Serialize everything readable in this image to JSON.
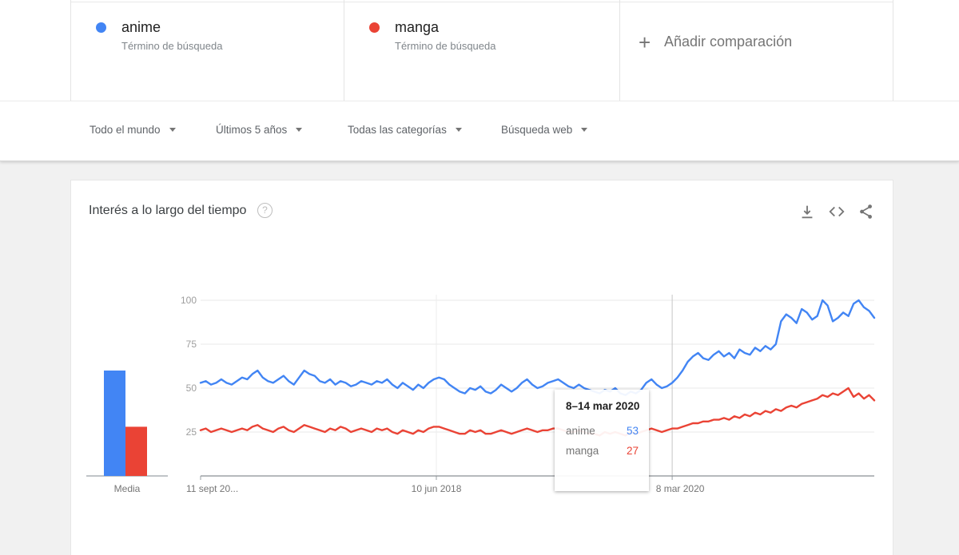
{
  "terms": {
    "cards": [
      {
        "term": "anime",
        "subtitle": "Término de búsqueda",
        "color": "#4285f4"
      },
      {
        "term": "manga",
        "subtitle": "Término de búsqueda",
        "color": "#ea4335"
      }
    ],
    "add_plus": "+",
    "add_label": "Añadir comparación"
  },
  "filters": {
    "items": [
      {
        "label": "Todo el mundo"
      },
      {
        "label": "Últimos 5 años"
      },
      {
        "label": "Todas las categorías"
      },
      {
        "label": "Búsqueda web"
      }
    ]
  },
  "panel": {
    "title": "Interés a lo largo del tiempo",
    "help": "?"
  },
  "icons": [
    "download-icon",
    "embed-icon",
    "share-icon"
  ],
  "tooltip": {
    "date": "8–14 mar 2020",
    "rows": [
      {
        "label": "anime",
        "value": "53"
      },
      {
        "label": "manga",
        "value": "27"
      }
    ]
  },
  "chart_data": {
    "type": "line",
    "title": "Interés a lo largo del tiempo",
    "ylabel": "",
    "xlabel": "",
    "ylim": [
      0,
      100
    ],
    "grid": true,
    "y_ticks": [
      25,
      50,
      75,
      100
    ],
    "x_ticks": [
      {
        "label": "11 sept 20...",
        "f": 0
      },
      {
        "label": "10 jun 2018",
        "f": 0.35
      },
      {
        "label": "8 mar 2020",
        "f": 0.7,
        "crosshair": true
      }
    ],
    "hover_point": {
      "date": "8–14 mar 2020",
      "anime": 53,
      "manga": 27
    },
    "series": [
      {
        "name": "anime",
        "color": "#4285f4",
        "values": [
          53,
          54,
          52,
          53,
          55,
          53,
          52,
          54,
          56,
          55,
          58,
          60,
          56,
          54,
          53,
          55,
          57,
          54,
          52,
          56,
          60,
          58,
          57,
          54,
          53,
          55,
          52,
          54,
          53,
          51,
          52,
          54,
          53,
          52,
          54,
          53,
          55,
          52,
          50,
          53,
          51,
          49,
          52,
          50,
          53,
          55,
          56,
          55,
          52,
          50,
          48,
          47,
          50,
          49,
          51,
          48,
          47,
          49,
          52,
          50,
          48,
          50,
          53,
          55,
          52,
          50,
          51,
          53,
          54,
          55,
          53,
          51,
          50,
          52,
          50,
          49,
          48,
          47,
          49,
          48,
          50,
          47,
          46,
          48,
          47,
          49,
          53,
          55,
          52,
          50,
          51,
          53,
          56,
          60,
          65,
          68,
          70,
          67,
          66,
          69,
          71,
          68,
          70,
          67,
          72,
          70,
          69,
          73,
          71,
          74,
          72,
          75,
          88,
          92,
          90,
          87,
          95,
          93,
          89,
          91,
          100,
          97,
          88,
          90,
          93,
          91,
          98,
          100,
          96,
          94,
          90
        ]
      },
      {
        "name": "manga",
        "color": "#ea4335",
        "values": [
          26,
          27,
          25,
          26,
          27,
          26,
          25,
          26,
          27,
          26,
          28,
          29,
          27,
          26,
          25,
          27,
          28,
          26,
          25,
          27,
          29,
          28,
          27,
          26,
          25,
          27,
          26,
          28,
          27,
          25,
          26,
          27,
          26,
          25,
          27,
          26,
          27,
          25,
          24,
          26,
          25,
          24,
          26,
          25,
          27,
          28,
          28,
          27,
          26,
          25,
          24,
          24,
          26,
          25,
          26,
          24,
          24,
          25,
          26,
          25,
          24,
          25,
          26,
          27,
          26,
          25,
          26,
          26,
          27,
          27,
          26,
          25,
          25,
          26,
          25,
          24,
          24,
          23,
          25,
          24,
          25,
          24,
          23,
          25,
          24,
          25,
          26,
          27,
          26,
          25,
          26,
          27,
          27,
          28,
          29,
          30,
          30,
          31,
          31,
          32,
          32,
          33,
          32,
          34,
          33,
          35,
          34,
          36,
          35,
          37,
          36,
          38,
          37,
          39,
          40,
          39,
          41,
          42,
          43,
          44,
          46,
          45,
          47,
          46,
          48,
          50,
          45,
          47,
          44,
          46,
          43
        ]
      }
    ],
    "media": {
      "label": "Media",
      "bars": [
        {
          "name": "anime",
          "value": 60,
          "color": "#4285f4"
        },
        {
          "name": "manga",
          "value": 28,
          "color": "#ea4335"
        }
      ]
    }
  }
}
